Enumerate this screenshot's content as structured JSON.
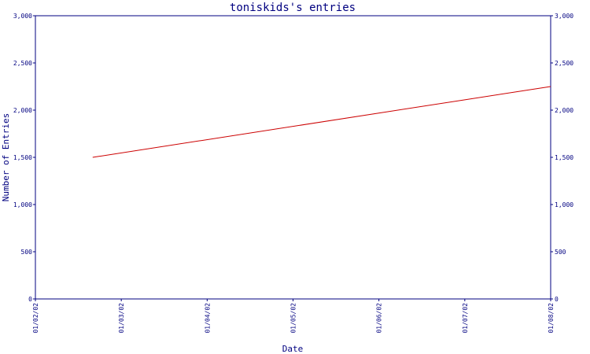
{
  "chart_data": {
    "type": "line",
    "title": "toniskids's entries",
    "xlabel": "Date",
    "ylabel": "Number of Entries",
    "x_ticks": [
      "01/02/02",
      "01/03/02",
      "01/04/02",
      "01/05/02",
      "01/06/02",
      "01/07/02",
      "01/08/02"
    ],
    "y_ticks": [
      "0",
      "500",
      "1,000",
      "1,500",
      "2,000",
      "2,500",
      "3,000"
    ],
    "xlim": [
      "2002-01-02",
      "2002-01-08"
    ],
    "ylim": [
      0,
      3000
    ],
    "series": [
      {
        "color": "#cc0000",
        "points": [
          {
            "x": "2002-01-02T16:00",
            "y": 1500
          },
          {
            "x": "2002-01-08",
            "y": 2250
          }
        ]
      }
    ],
    "grid": false,
    "axis_color": "#000080"
  }
}
